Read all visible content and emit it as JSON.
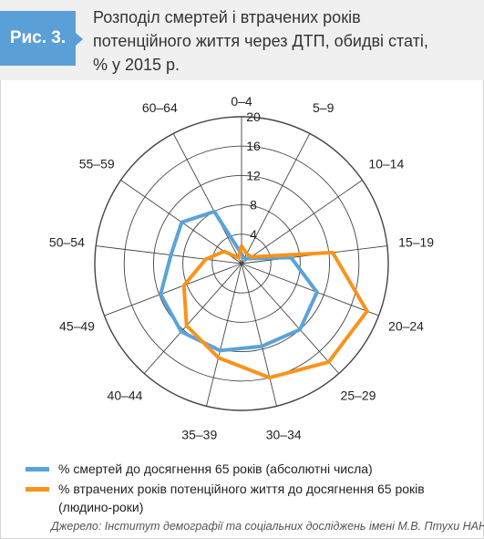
{
  "figure": {
    "label": "Рис. 3.",
    "title_lines": [
      "Розподіл смертей і втрачених років",
      "потенційного життя через ДТП, обидві статі,",
      "% у 2015 р."
    ],
    "source": "Джерело: Інститут демографії та соціальних досліджень імені М.В. Птухи НАНУ."
  },
  "colors": {
    "blue": "#5aa3d8",
    "orange": "#f7941d",
    "grid": "#444444",
    "badge": "#5a9fd6"
  },
  "chart_data": {
    "type": "radar",
    "categories": [
      "0–4",
      "5–9",
      "10–14",
      "15–19",
      "20–24",
      "25–29",
      "30–34",
      "35–39",
      "40–44",
      "45–49",
      "50–54",
      "55–59",
      "60–64"
    ],
    "rmax": 20,
    "ticks": [
      4,
      8,
      12,
      16,
      20
    ],
    "tick_labels": [
      "4",
      "8",
      "12",
      "16",
      "20"
    ],
    "series": [
      {
        "name": "% смертей до досягнення 65 років (абсолютні числа)",
        "color": "#5aa3d8",
        "values": [
          1.3,
          0.8,
          1.2,
          6.8,
          11.0,
          12.0,
          11.6,
          12.2,
          12.4,
          11.8,
          9.7,
          9.9,
          8.0
        ]
      },
      {
        "name": "% втрачених років потенційного життя до досягнення 65 років (людино-роки)",
        "color": "#f7941d",
        "values": [
          2.4,
          1.5,
          1.6,
          12.5,
          18.3,
          17.9,
          16.0,
          13.2,
          11.3,
          8.4,
          4.9,
          2.9,
          0.9
        ]
      }
    ],
    "legend_position": "bottom"
  }
}
